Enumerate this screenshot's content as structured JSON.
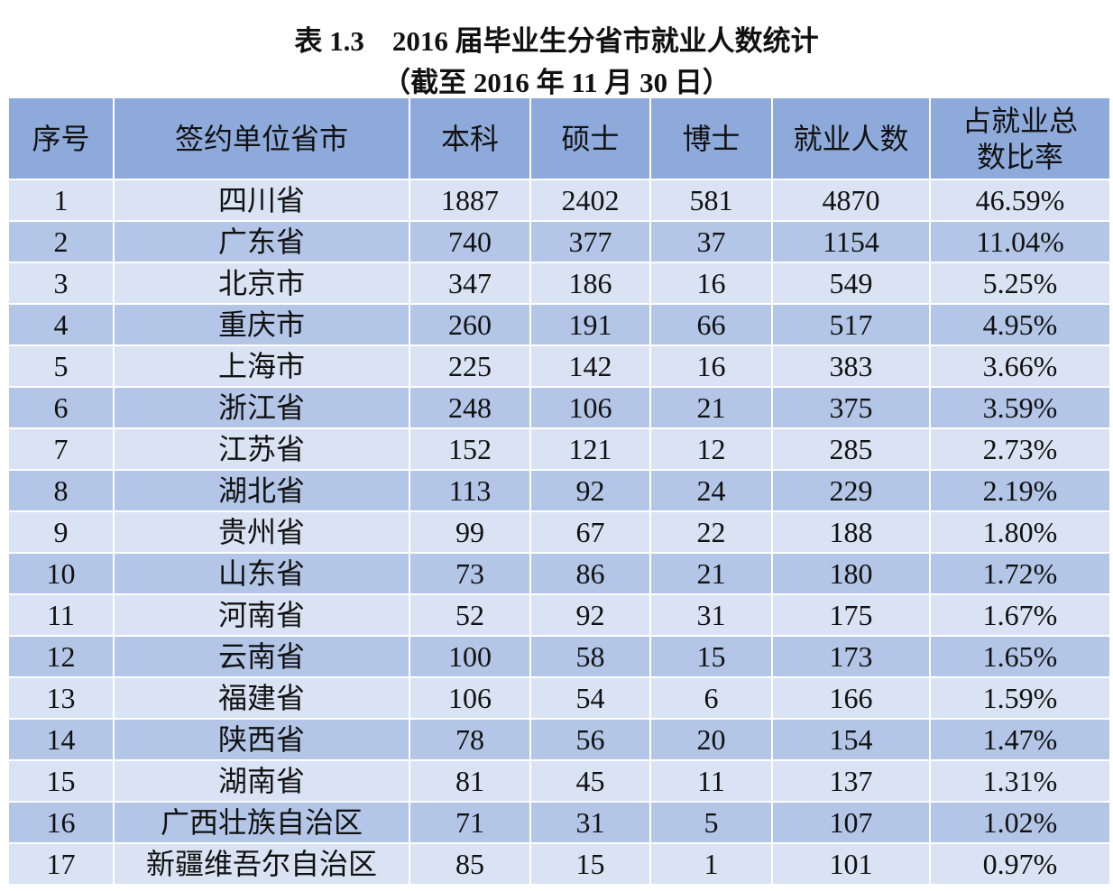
{
  "header": {
    "title": "表 1.3　2016 届毕业生分省市就业人数统计",
    "subtitle": "（截至 2016 年 11 月 30 日）"
  },
  "table": {
    "columns": [
      "序号",
      "签约单位省市",
      "本科",
      "硕士",
      "博士",
      "就业人数",
      "占就业总数比率"
    ],
    "rows": [
      [
        "1",
        "四川省",
        "1887",
        "2402",
        "581",
        "4870",
        "46.59%"
      ],
      [
        "2",
        "广东省",
        "740",
        "377",
        "37",
        "1154",
        "11.04%"
      ],
      [
        "3",
        "北京市",
        "347",
        "186",
        "16",
        "549",
        "5.25%"
      ],
      [
        "4",
        "重庆市",
        "260",
        "191",
        "66",
        "517",
        "4.95%"
      ],
      [
        "5",
        "上海市",
        "225",
        "142",
        "16",
        "383",
        "3.66%"
      ],
      [
        "6",
        "浙江省",
        "248",
        "106",
        "21",
        "375",
        "3.59%"
      ],
      [
        "7",
        "江苏省",
        "152",
        "121",
        "12",
        "285",
        "2.73%"
      ],
      [
        "8",
        "湖北省",
        "113",
        "92",
        "24",
        "229",
        "2.19%"
      ],
      [
        "9",
        "贵州省",
        "99",
        "67",
        "22",
        "188",
        "1.80%"
      ],
      [
        "10",
        "山东省",
        "73",
        "86",
        "21",
        "180",
        "1.72%"
      ],
      [
        "11",
        "河南省",
        "52",
        "92",
        "31",
        "175",
        "1.67%"
      ],
      [
        "12",
        "云南省",
        "100",
        "58",
        "15",
        "173",
        "1.65%"
      ],
      [
        "13",
        "福建省",
        "106",
        "54",
        "6",
        "166",
        "1.59%"
      ],
      [
        "14",
        "陕西省",
        "78",
        "56",
        "20",
        "154",
        "1.47%"
      ],
      [
        "15",
        "湖南省",
        "81",
        "45",
        "11",
        "137",
        "1.31%"
      ],
      [
        "16",
        "广西壮族自治区",
        "71",
        "31",
        "5",
        "107",
        "1.02%"
      ],
      [
        "17",
        "新疆维吾尔自治区",
        "85",
        "15",
        "1",
        "101",
        "0.97%"
      ]
    ]
  }
}
